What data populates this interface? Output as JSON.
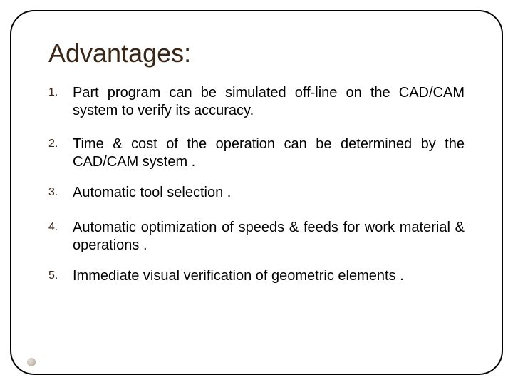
{
  "slide": {
    "title": "Advantages:",
    "title_color": "#3a2616",
    "title_fontsize": 36,
    "body_fontsize": 20,
    "number_color": "#3a2616",
    "number_fontsize": 16,
    "frame_border_color": "#000000",
    "frame_border_radius": 34,
    "background_color": "#ffffff",
    "items": [
      "Part program can be simulated off-line on the CAD/CAM system to verify its accuracy.",
      " Time & cost of the operation can be determined by the CAD/CAM   system .",
      "Automatic tool selection .",
      "Automatic optimization of speeds & feeds for work material & operations .",
      "Immediate visual verification of geometric elements ."
    ],
    "bullet_dot_color": "#cfc6bc"
  }
}
